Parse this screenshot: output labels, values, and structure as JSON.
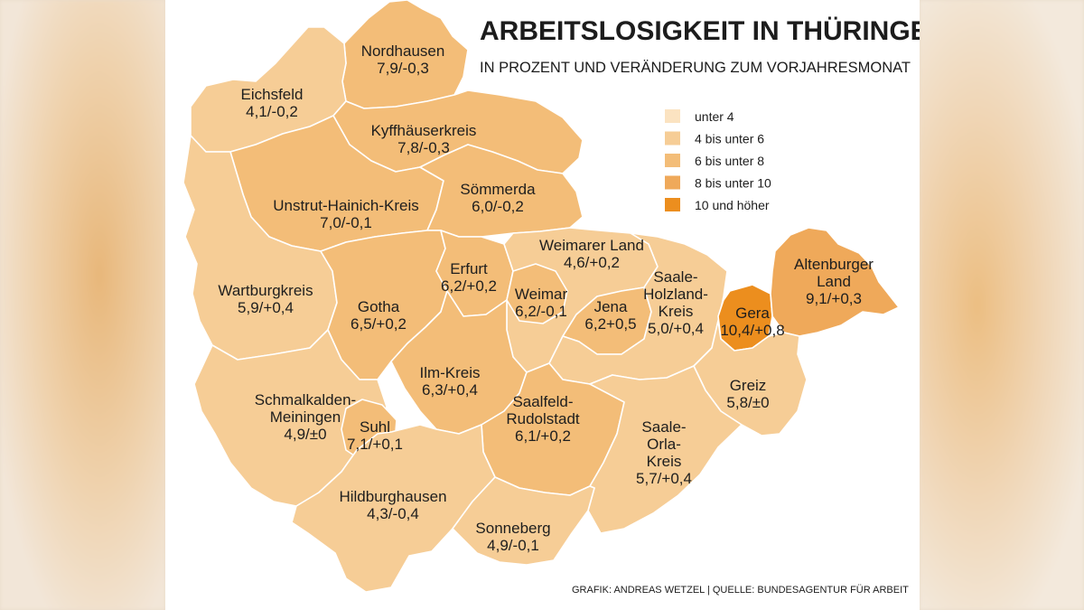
{
  "title": "ARBEITSLOSIGKEIT IN THÜRINGEN",
  "subtitle": "IN PROZENT UND VERÄNDERUNG ZUM VORJAHRESMONAT",
  "source": "GRAFIK: ANDREAS WETZEL | QUELLE: BUNDESAGENTUR FÜR ARBEIT",
  "colors": {
    "c1": "#fbe3c1",
    "c2": "#f6cd96",
    "c3": "#f3bd78",
    "c4": "#efa95a",
    "c5": "#ec8e1e"
  },
  "legend": [
    {
      "label": "unter 4",
      "class": "c1"
    },
    {
      "label": "4 bis unter 6",
      "class": "c2"
    },
    {
      "label": "6 bis unter 8",
      "class": "c3"
    },
    {
      "label": "8 bis unter 10",
      "class": "c4"
    },
    {
      "label": "10 und höher",
      "class": "c5"
    }
  ],
  "regions": [
    {
      "name": "Nordhausen",
      "value": "7,9/-0,3",
      "class": "c3"
    },
    {
      "name": "Eichsfeld",
      "value": "4,1/-0,2",
      "class": "c2"
    },
    {
      "name": "Kyffhäuserkreis",
      "value": "7,8/-0,3",
      "class": "c3"
    },
    {
      "name": "Sömmerda",
      "value": "6,0/-0,2",
      "class": "c3"
    },
    {
      "name": "Unstrut-Hainich-Kreis",
      "value": "7,0/-0,1",
      "class": "c3"
    },
    {
      "name": "Weimarer Land",
      "value": "4,6/+0,2",
      "class": "c2"
    },
    {
      "name": "Erfurt",
      "value": "6,2/+0,2",
      "class": "c3"
    },
    {
      "name": "Weimar",
      "value": "6,2/-0,1",
      "class": "c3"
    },
    {
      "name": "Wartburgkreis",
      "value": "5,9/+0,4",
      "class": "c2"
    },
    {
      "name": "Gotha",
      "value": "6,5/+0,2",
      "class": "c3"
    },
    {
      "name": "Jena",
      "value": "6,2+0,5",
      "class": "c3"
    },
    {
      "name": "Saale-Holzland-Kreis",
      "name_lines": [
        "Saale-",
        "Holzland-",
        "Kreis"
      ],
      "value": "5,0/+0,4",
      "class": "c2"
    },
    {
      "name": "Gera",
      "value": "10,4/+0,8",
      "class": "c5"
    },
    {
      "name": "Altenburger Land",
      "name_lines": [
        "Altenburger",
        "Land"
      ],
      "value": "9,1/+0,3",
      "class": "c4"
    },
    {
      "name": "Ilm-Kreis",
      "value": "6,3/+0,4",
      "class": "c3"
    },
    {
      "name": "Saalfeld-Rudolstadt",
      "name_lines": [
        "Saalfeld-",
        "Rudolstadt"
      ],
      "value": "6,1/+0,2",
      "class": "c3"
    },
    {
      "name": "Greiz",
      "value": "5,8/±0",
      "class": "c2"
    },
    {
      "name": "Schmalkalden-Meiningen",
      "name_lines": [
        "Schmalkalden-",
        "Meiningen"
      ],
      "value": "4,9/±0",
      "class": "c2"
    },
    {
      "name": "Suhl",
      "value": "7,1/+0,1",
      "class": "c3"
    },
    {
      "name": "Saale-Orla-Kreis",
      "name_lines": [
        "Saale-",
        "Orla-",
        "Kreis"
      ],
      "value": "5,7/+0,4",
      "class": "c2"
    },
    {
      "name": "Hildburghausen",
      "value": "4,3/-0,4",
      "class": "c2"
    },
    {
      "name": "Sonneberg",
      "value": "4,9/-0,1",
      "class": "c2"
    }
  ]
}
